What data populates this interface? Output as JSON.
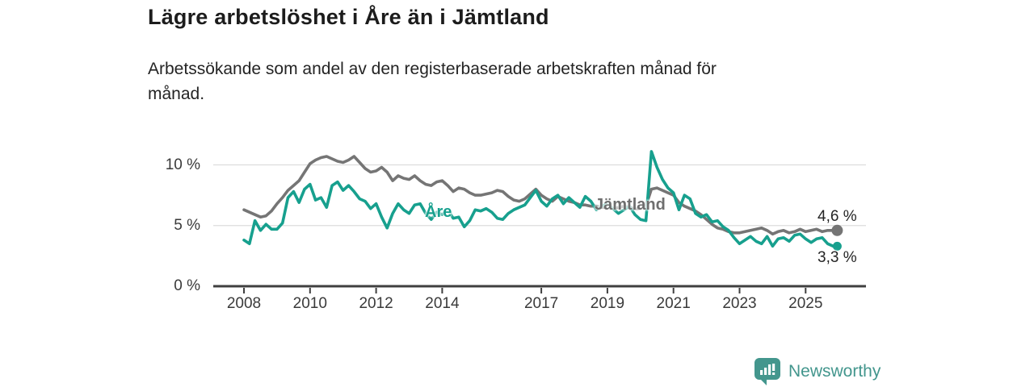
{
  "title": "Lägre arbetslöshet i Åre än i Jämtland",
  "subtitle_lines": [
    "Arbetssökande som andel av den registerbaserade arbetskraften månad för",
    "månad."
  ],
  "colors": {
    "jamtland_line": "#757575",
    "are_line": "#17a08e",
    "gridline": "#dddddd",
    "axis_line": "#3f3f3f",
    "axis_text": "#3a3a3a",
    "title_text": "#1c1c1c",
    "logo_teal": "#43968d"
  },
  "branding": {
    "logo_text": "Newsworthy",
    "logo_icon": "bar-chart-speech-bubble-icon"
  },
  "chart_data": {
    "type": "line",
    "x_unit": "year (monthly data, plotted bimonthly)",
    "x_start": 2008.0,
    "x_step_years": 0.166667,
    "xlim": [
      2007.1,
      2026.9
    ],
    "ylim": [
      0,
      11.8
    ],
    "grid": "horizontal gridlines at 5 and 10, dark baseline at 0",
    "legend_position": "inline labels on lines, end-value labels at right",
    "xticks": [
      2008,
      2010,
      2012,
      2014,
      2017,
      2019,
      2021,
      2023,
      2025
    ],
    "yticks": [
      {
        "value": 0,
        "label": "0 %",
        "grid": false
      },
      {
        "value": 5,
        "label": "5 %",
        "grid": true
      },
      {
        "value": 10,
        "label": "10 %",
        "grid": true
      }
    ],
    "series": [
      {
        "name": "Jämtland",
        "color": "#757575",
        "end_label": "4,6 %",
        "end_value": 4.6,
        "values": [
          6.3,
          6.1,
          5.9,
          5.7,
          5.8,
          6.2,
          6.8,
          7.3,
          7.9,
          8.3,
          8.7,
          9.4,
          10.1,
          10.4,
          10.6,
          10.7,
          10.5,
          10.3,
          10.2,
          10.4,
          10.7,
          10.2,
          9.7,
          9.4,
          9.5,
          9.8,
          9.4,
          8.7,
          9.1,
          8.9,
          8.8,
          9.1,
          8.7,
          8.4,
          8.3,
          8.6,
          8.7,
          8.3,
          7.8,
          8.1,
          8.0,
          7.7,
          7.5,
          7.5,
          7.6,
          7.7,
          7.9,
          7.8,
          7.4,
          7.1,
          7.0,
          7.2,
          7.6,
          8.0,
          7.5,
          7.2,
          7.0,
          7.4,
          7.2,
          7.0,
          6.9,
          6.7,
          6.7,
          6.6,
          6.6,
          6.5,
          6.5,
          6.4,
          6.5,
          6.6,
          6.5,
          6.4,
          6.4,
          6.6,
          8.0,
          8.1,
          7.9,
          7.7,
          7.5,
          6.9,
          6.6,
          6.4,
          6.2,
          5.9,
          5.5,
          5.1,
          4.8,
          4.7,
          4.5,
          4.4,
          4.4,
          4.5,
          4.6,
          4.7,
          4.8,
          4.6,
          4.3,
          4.5,
          4.6,
          4.4,
          4.5,
          4.7,
          4.5,
          4.6,
          4.7,
          4.5,
          4.6,
          4.6
        ]
      },
      {
        "name": "Åre",
        "color": "#17a08e",
        "end_label": "3,3 %",
        "end_value": 3.3,
        "values": [
          3.8,
          3.5,
          5.4,
          4.6,
          5.1,
          4.7,
          4.7,
          5.2,
          7.3,
          7.8,
          6.9,
          8.0,
          8.4,
          7.1,
          7.3,
          6.5,
          8.3,
          8.6,
          7.9,
          8.3,
          7.8,
          7.2,
          7.0,
          6.4,
          6.8,
          5.7,
          4.8,
          6.0,
          6.8,
          6.3,
          6.0,
          6.7,
          6.8,
          6.0,
          5.5,
          6.1,
          5.9,
          6.3,
          5.6,
          5.7,
          4.9,
          5.4,
          6.3,
          6.2,
          6.4,
          6.1,
          5.6,
          5.5,
          6.0,
          6.3,
          6.5,
          6.7,
          7.3,
          7.9,
          7.0,
          6.6,
          7.2,
          7.5,
          6.8,
          7.3,
          6.9,
          6.5,
          7.4,
          7.0,
          6.3,
          6.6,
          6.8,
          6.4,
          6.0,
          6.3,
          6.6,
          5.9,
          5.5,
          5.4,
          11.1,
          9.8,
          8.8,
          8.1,
          7.7,
          6.3,
          7.5,
          7.2,
          6.0,
          5.7,
          5.9,
          5.3,
          5.4,
          4.9,
          4.6,
          4.0,
          3.5,
          3.8,
          4.1,
          3.7,
          3.5,
          4.1,
          3.3,
          3.9,
          4.0,
          3.7,
          4.2,
          4.3,
          3.9,
          3.6,
          3.9,
          4.0,
          3.5,
          3.3
        ]
      }
    ]
  }
}
